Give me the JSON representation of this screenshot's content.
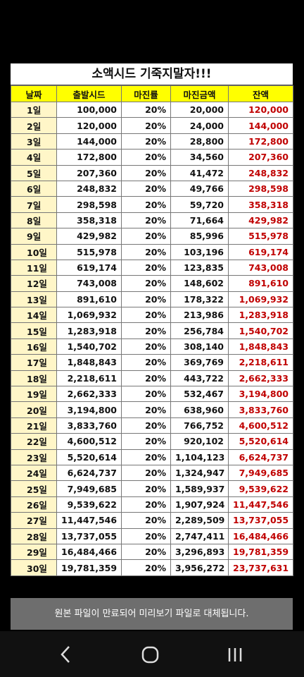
{
  "title": "소액시드 기죽지말자!!!",
  "table": {
    "header": [
      "날짜",
      "출발시드",
      "마진률",
      "마진금액",
      "잔액"
    ],
    "rows": [
      [
        "1일",
        "100,000",
        "20%",
        "20,000",
        "120,000"
      ],
      [
        "2일",
        "120,000",
        "20%",
        "24,000",
        "144,000"
      ],
      [
        "3일",
        "144,000",
        "20%",
        "28,800",
        "172,800"
      ],
      [
        "4일",
        "172,800",
        "20%",
        "34,560",
        "207,360"
      ],
      [
        "5일",
        "207,360",
        "20%",
        "41,472",
        "248,832"
      ],
      [
        "6일",
        "248,832",
        "20%",
        "49,766",
        "298,598"
      ],
      [
        "7일",
        "298,598",
        "20%",
        "59,720",
        "358,318"
      ],
      [
        "8일",
        "358,318",
        "20%",
        "71,664",
        "429,982"
      ],
      [
        "9일",
        "429,982",
        "20%",
        "85,996",
        "515,978"
      ],
      [
        "10일",
        "515,978",
        "20%",
        "103,196",
        "619,174"
      ],
      [
        "11일",
        "619,174",
        "20%",
        "123,835",
        "743,008"
      ],
      [
        "12일",
        "743,008",
        "20%",
        "148,602",
        "891,610"
      ],
      [
        "13일",
        "891,610",
        "20%",
        "178,322",
        "1,069,932"
      ],
      [
        "14일",
        "1,069,932",
        "20%",
        "213,986",
        "1,283,918"
      ],
      [
        "15일",
        "1,283,918",
        "20%",
        "256,784",
        "1,540,702"
      ],
      [
        "16일",
        "1,540,702",
        "20%",
        "308,140",
        "1,848,843"
      ],
      [
        "17일",
        "1,848,843",
        "20%",
        "369,769",
        "2,218,611"
      ],
      [
        "18일",
        "2,218,611",
        "20%",
        "443,722",
        "2,662,333"
      ],
      [
        "19일",
        "2,662,333",
        "20%",
        "532,467",
        "3,194,800"
      ],
      [
        "20일",
        "3,194,800",
        "20%",
        "638,960",
        "3,833,760"
      ],
      [
        "21일",
        "3,833,760",
        "20%",
        "766,752",
        "4,600,512"
      ],
      [
        "22일",
        "4,600,512",
        "20%",
        "920,102",
        "5,520,614"
      ],
      [
        "23일",
        "5,520,614",
        "20%",
        "1,104,123",
        "6,624,737"
      ],
      [
        "24일",
        "6,624,737",
        "20%",
        "1,324,947",
        "7,949,685"
      ],
      [
        "25일",
        "7,949,685",
        "20%",
        "1,589,937",
        "9,539,622"
      ],
      [
        "26일",
        "9,539,622",
        "20%",
        "1,907,924",
        "11,447,546"
      ],
      [
        "27일",
        "11,447,546",
        "20%",
        "2,289,509",
        "13,737,055"
      ],
      [
        "28일",
        "13,737,055",
        "20%",
        "2,747,411",
        "16,484,466"
      ],
      [
        "29일",
        "16,484,466",
        "20%",
        "3,296,893",
        "19,781,359"
      ],
      [
        "30일",
        "19,781,359",
        "20%",
        "3,956,272",
        "23,737,631"
      ]
    ]
  },
  "toast": "원본 파일이 만료되어 미리보기 파일로 대체됩니다."
}
